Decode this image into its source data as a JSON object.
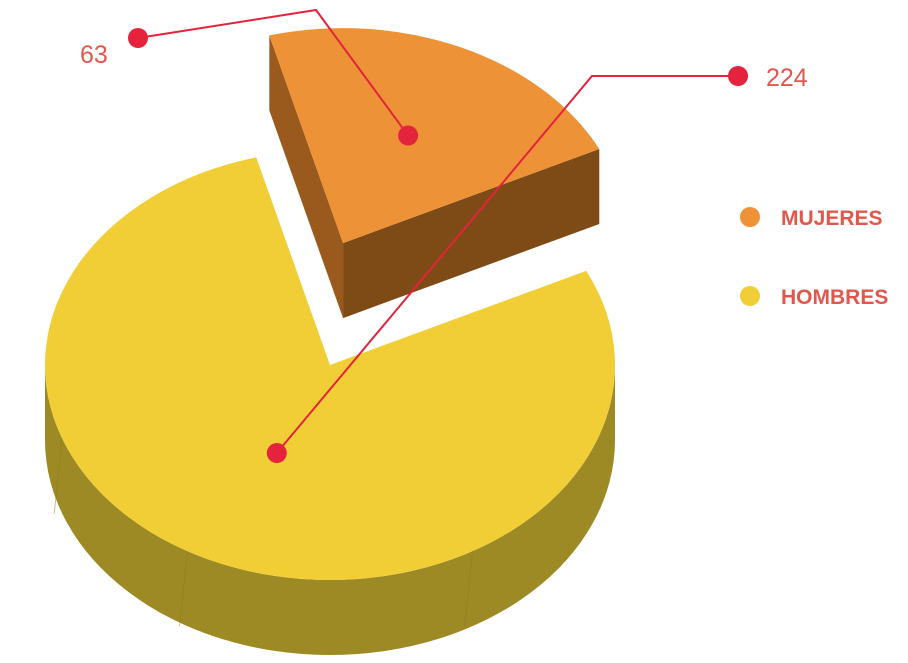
{
  "chart_data": {
    "type": "pie",
    "title": "",
    "slices": [
      {
        "label": "MUJERES",
        "value": 63,
        "value_label": "63",
        "color": "#ED9236",
        "side_color": "#9A5A1E",
        "exploded": true
      },
      {
        "label": "HOMBRES",
        "value": 224,
        "value_label": "224",
        "color": "#F1CE36",
        "side_color": "#9E8A24"
      }
    ],
    "legend": {
      "position": "right"
    },
    "label_color": "#E2574C",
    "leader_color": "#E4233C"
  }
}
